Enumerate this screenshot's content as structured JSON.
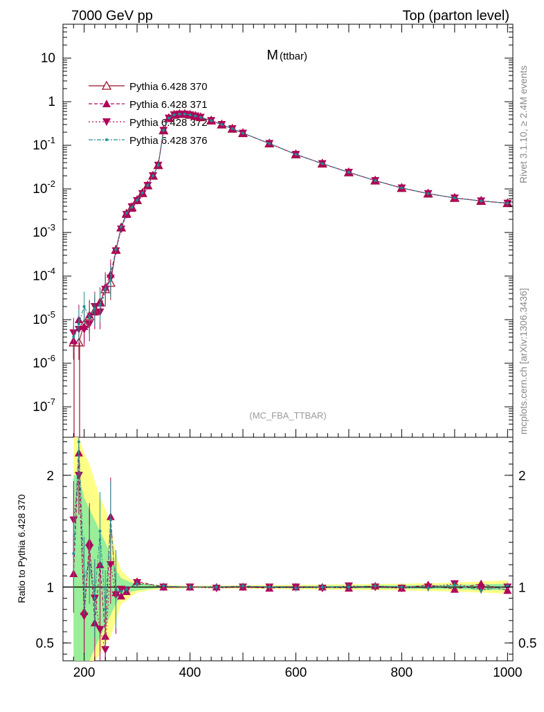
{
  "header": {
    "left": "7000 GeV pp",
    "right": "Top (parton level)"
  },
  "side": {
    "rivet": "Rivet 3.1.10, ≥ 2.4M events",
    "mcplots": "mcplots.cern.ch [arXiv:1306.3436]"
  },
  "colors": {
    "p370": "#9c0f26",
    "p371": "#b0005a",
    "p372": "#b0005a",
    "p376": "#1f8f8f",
    "band_outer": "#ffff88",
    "band_inner": "#99ee99"
  },
  "chart_data": [
    {
      "type": "line",
      "title": "M",
      "title_sub": "(ttbar)",
      "watermark": "(MC_FBA_TTBAR)",
      "yscale": "log",
      "xlim": [
        160,
        1010
      ],
      "ylim": [
        2e-08,
        60
      ],
      "yticks": [
        1e-07,
        1e-06,
        1e-05,
        0.0001,
        0.001,
        0.01,
        0.1,
        1,
        10
      ],
      "ytick_labels": [
        "10^-7",
        "10^-6",
        "10^-5",
        "10^-4",
        "10^-3",
        "10^-2",
        "10^-1",
        "1",
        "10"
      ],
      "legend_position": "top-left",
      "x": [
        180,
        190,
        200,
        210,
        220,
        230,
        240,
        250,
        260,
        270,
        280,
        290,
        300,
        310,
        320,
        330,
        340,
        350,
        360,
        370,
        380,
        390,
        400,
        410,
        420,
        440,
        460,
        480,
        500,
        550,
        600,
        650,
        700,
        750,
        800,
        850,
        900,
        950,
        1000
      ],
      "series": [
        {
          "name": "Pythia 6.428 370",
          "marker": "triangle-up-open",
          "dash": "solid",
          "values": [
            3e-06,
            3e-06,
            8e-06,
            1.2e-05,
            1.6e-05,
            2.5e-05,
            5e-05,
            7e-05,
            0.0004,
            0.0013,
            0.0027,
            0.0038,
            0.0055,
            0.008,
            0.012,
            0.02,
            0.035,
            0.22,
            0.42,
            0.5,
            0.52,
            0.52,
            0.5,
            0.47,
            0.44,
            0.37,
            0.3,
            0.24,
            0.19,
            0.11,
            0.062,
            0.038,
            0.024,
            0.0155,
            0.0105,
            0.0078,
            0.0062,
            0.0053,
            0.0047
          ]
        },
        {
          "name": "Pythia 6.428 371",
          "marker": "triangle-up",
          "dash": "dashed",
          "values": [
            3.3e-06,
            1e-05,
            7e-06,
            1.3e-05,
            1.5e-05,
            2.4e-05,
            5.6e-05,
            0.00011,
            0.00039,
            0.0013,
            0.0026,
            0.0036,
            0.0056,
            0.008,
            0.012,
            0.02,
            0.035,
            0.22,
            0.42,
            0.5,
            0.52,
            0.52,
            0.5,
            0.47,
            0.44,
            0.37,
            0.3,
            0.24,
            0.19,
            0.11,
            0.062,
            0.038,
            0.024,
            0.0155,
            0.0105,
            0.0078,
            0.0062,
            0.0053,
            0.0047
          ]
        },
        {
          "name": "Pythia 6.428 372",
          "marker": "triangle-down",
          "dash": "dotted",
          "values": [
            5e-06,
            6e-06,
            6e-06,
            8e-06,
            2e-05,
            1.5e-05,
            5e-05,
            9e-05,
            0.00038,
            0.0012,
            0.0026,
            0.0039,
            0.0054,
            0.0078,
            0.012,
            0.02,
            0.035,
            0.22,
            0.42,
            0.5,
            0.52,
            0.52,
            0.5,
            0.47,
            0.44,
            0.37,
            0.3,
            0.24,
            0.19,
            0.11,
            0.062,
            0.038,
            0.024,
            0.0155,
            0.0105,
            0.0078,
            0.0062,
            0.0053,
            0.0047
          ]
        },
        {
          "name": "Pythia 6.428 376",
          "marker": "dot",
          "dash": "dashdot",
          "values": [
            4e-06,
            8e-06,
            2e-05,
            1.1e-05,
            1.8e-05,
            2.2e-05,
            5e-05,
            8e-05,
            0.00041,
            0.00135,
            0.0028,
            0.0038,
            0.0055,
            0.0081,
            0.012,
            0.02,
            0.035,
            0.22,
            0.42,
            0.5,
            0.52,
            0.52,
            0.5,
            0.47,
            0.44,
            0.37,
            0.3,
            0.24,
            0.19,
            0.11,
            0.062,
            0.038,
            0.024,
            0.0155,
            0.0105,
            0.0078,
            0.0062,
            0.0053,
            0.0047
          ]
        }
      ]
    },
    {
      "type": "line",
      "ylabel": "Ratio to Pythia 6.428 370",
      "xlim": [
        160,
        1010
      ],
      "ylim": [
        0.34,
        2.34
      ],
      "yticks": [
        0.5,
        1,
        2
      ],
      "ytick_labels": [
        "0.5",
        "1",
        "2"
      ],
      "xticks": [
        200,
        400,
        600,
        800,
        1000
      ],
      "xtick_labels": [
        "200",
        "400",
        "600",
        "800",
        "1000"
      ],
      "band": {
        "x": [
          180,
          190,
          200,
          210,
          220,
          230,
          240,
          250,
          260,
          270,
          280,
          290,
          300,
          320,
          340,
          400,
          600,
          800,
          900,
          1000
        ],
        "outer_lo": [
          0.34,
          0.34,
          0.34,
          0.34,
          0.34,
          0.4,
          0.5,
          0.55,
          0.7,
          0.85,
          0.88,
          0.92,
          0.95,
          0.97,
          0.98,
          0.99,
          0.98,
          0.97,
          0.96,
          0.94
        ],
        "outer_hi": [
          2.34,
          2.34,
          2.2,
          2.1,
          1.95,
          1.8,
          1.7,
          1.55,
          1.3,
          1.15,
          1.1,
          1.06,
          1.04,
          1.03,
          1.02,
          1.01,
          1.02,
          1.03,
          1.04,
          1.06
        ],
        "inner_lo": [
          0.34,
          0.34,
          0.34,
          0.34,
          0.45,
          0.55,
          0.65,
          0.75,
          0.85,
          0.92,
          0.94,
          0.96,
          0.97,
          0.98,
          0.99,
          0.995,
          0.99,
          0.985,
          0.98,
          0.97
        ],
        "inner_hi": [
          2.0,
          2.0,
          1.8,
          1.7,
          1.6,
          1.5,
          1.4,
          1.3,
          1.15,
          1.08,
          1.06,
          1.04,
          1.03,
          1.02,
          1.01,
          1.005,
          1.01,
          1.015,
          1.02,
          1.03
        ]
      },
      "x": [
        180,
        190,
        200,
        210,
        220,
        230,
        240,
        250,
        260,
        270,
        280,
        300,
        350,
        400,
        450,
        500,
        550,
        600,
        650,
        700,
        750,
        800,
        850,
        900,
        950,
        1000
      ],
      "series": [
        {
          "name": "Pythia 6.428 371",
          "values": [
            1.12,
            2.2,
            0.78,
            1.4,
            0.68,
            1.2,
            0.56,
            1.63,
            0.95,
            0.92,
            0.96,
            1.05,
            1.0,
            1.0,
            1.0,
            1.0,
            0.99,
            1.0,
            1.0,
            0.99,
            1.01,
            0.99,
            1.02,
            0.98,
            1.03,
            0.97
          ]
        },
        {
          "name": "Pythia 6.428 372",
          "values": [
            1.6,
            2.0,
            0.74,
            1.35,
            0.9,
            0.62,
            0.44,
            1.2,
            0.93,
            0.98,
            0.97,
            1.04,
            1.0,
            1.0,
            0.99,
            1.0,
            1.0,
            1.0,
            0.99,
            1.01,
            1.0,
            0.99,
            1.0,
            1.03,
            0.98,
            1.0
          ]
        },
        {
          "name": "Pythia 6.428 376",
          "values": [
            1.3,
            2.3,
            1.1,
            1.2,
            0.9,
            1.5,
            0.8,
            1.6,
            0.98,
            0.96,
            0.98,
            1.03,
            1.01,
            1.0,
            1.0,
            1.01,
            1.0,
            0.99,
            1.0,
            1.0,
            1.01,
            1.0,
            0.99,
            1.02,
            0.97,
            1.01
          ]
        }
      ]
    }
  ]
}
